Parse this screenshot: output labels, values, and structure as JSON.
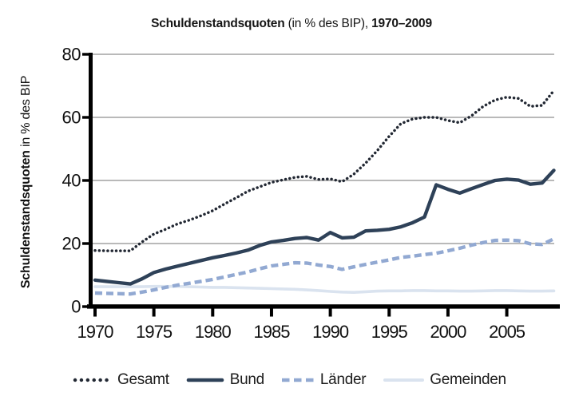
{
  "title": {
    "part_bold_1": "Schuldenstandsquoten",
    "part_regular": " (in % des BIP), ",
    "part_bold_2": "1970–2009"
  },
  "y_axis_title": {
    "bold": "Schuldenstandsquoten",
    "regular": " in % des BIP"
  },
  "colors": {
    "gesamt": "#222833",
    "bund": "#2e4158",
    "laender": "#92a9d2",
    "gemeinden": "#dae3ef",
    "grid": "#8f8f8f",
    "axis": "#000000",
    "text": "#111111"
  },
  "chart_data": {
    "type": "line",
    "title": "Schuldenstandsquoten (in % des BIP), 1970–2009",
    "ylabel": "Schuldenstandsquoten in % des BIP",
    "xlabel": "",
    "ylim": [
      0,
      80
    ],
    "grid": "horizontal",
    "legend_position": "bottom",
    "x_ticks": [
      1970,
      1975,
      1980,
      1985,
      1990,
      1995,
      2000,
      2005
    ],
    "y_ticks": [
      0,
      20,
      40,
      60,
      80
    ],
    "x": [
      1970,
      1971,
      1972,
      1973,
      1974,
      1975,
      1976,
      1977,
      1978,
      1979,
      1980,
      1981,
      1982,
      1983,
      1984,
      1985,
      1986,
      1987,
      1988,
      1989,
      1990,
      1991,
      1992,
      1993,
      1994,
      1995,
      1996,
      1997,
      1998,
      1999,
      2000,
      2001,
      2002,
      2003,
      2004,
      2005,
      2006,
      2007,
      2008,
      2009
    ],
    "series": [
      {
        "name": "Gesamt",
        "style": "dotted",
        "color": "#222833",
        "values": [
          17.8,
          17.7,
          17.7,
          17.7,
          20.5,
          23.0,
          24.5,
          26.2,
          27.4,
          28.8,
          30.4,
          32.5,
          34.5,
          36.6,
          38.0,
          39.4,
          40.2,
          41.0,
          41.3,
          40.3,
          40.5,
          39.6,
          42.0,
          45.5,
          49.5,
          54.0,
          58.0,
          59.5,
          60.0,
          60.0,
          59.0,
          58.3,
          60.5,
          63.5,
          65.5,
          66.4,
          66.0,
          63.5,
          63.8,
          68.5
        ]
      },
      {
        "name": "Bund",
        "style": "solid",
        "color": "#2e4158",
        "values": [
          8.4,
          8.0,
          7.6,
          7.2,
          8.8,
          10.8,
          11.9,
          12.8,
          13.7,
          14.6,
          15.5,
          16.2,
          17.0,
          17.9,
          19.4,
          20.5,
          21.0,
          21.6,
          21.9,
          21.1,
          23.5,
          21.8,
          22.0,
          24.0,
          24.2,
          24.5,
          25.3,
          26.6,
          28.4,
          38.6,
          37.2,
          36.0,
          37.4,
          38.7,
          40.0,
          40.4,
          40.1,
          38.8,
          39.2,
          43.2
        ]
      },
      {
        "name": "Länder",
        "style": "dashed",
        "color": "#92a9d2",
        "values": [
          4.3,
          4.2,
          4.1,
          4.0,
          4.6,
          5.3,
          6.1,
          6.8,
          7.4,
          8.0,
          8.6,
          9.4,
          10.2,
          11.0,
          12.0,
          12.9,
          13.4,
          13.9,
          13.8,
          13.2,
          12.7,
          11.8,
          12.6,
          13.4,
          14.1,
          14.8,
          15.6,
          16.0,
          16.5,
          16.9,
          17.7,
          18.5,
          19.5,
          20.3,
          21.0,
          21.1,
          20.9,
          19.9,
          19.7,
          21.5
        ]
      },
      {
        "name": "Gemeinden",
        "style": "light",
        "color": "#dae3ef",
        "values": [
          6.3,
          6.3,
          6.3,
          6.3,
          6.3,
          6.4,
          6.4,
          6.4,
          6.3,
          6.2,
          6.1,
          6.1,
          6.0,
          5.9,
          5.8,
          5.7,
          5.6,
          5.5,
          5.3,
          5.1,
          4.8,
          4.6,
          4.5,
          4.7,
          4.9,
          5.0,
          5.0,
          5.1,
          5.1,
          5.0,
          5.0,
          4.9,
          4.9,
          5.0,
          5.1,
          5.1,
          5.0,
          4.9,
          4.9,
          5.0
        ]
      }
    ]
  }
}
